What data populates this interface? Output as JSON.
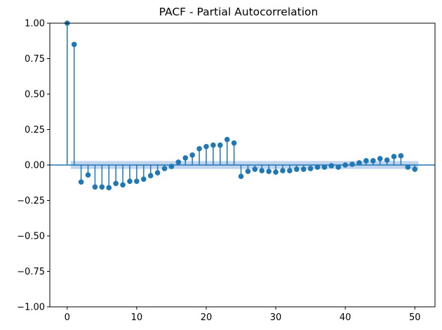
{
  "chart_data": {
    "type": "stem",
    "title": "PACF - Partial Autocorrelation",
    "xlabel": "",
    "ylabel": "",
    "xlim": [
      -2.5,
      52.9
    ],
    "ylim": [
      -1.0,
      1.0
    ],
    "xticks": [
      0,
      10,
      20,
      30,
      40,
      50
    ],
    "xtick_labels": [
      "0",
      "10",
      "20",
      "30",
      "40",
      "50"
    ],
    "yticks": [
      -1.0,
      -0.75,
      -0.5,
      -0.25,
      0.0,
      0.25,
      0.5,
      0.75,
      1.0
    ],
    "ytick_labels": [
      "−1.00",
      "−0.75",
      "−0.50",
      "−0.25",
      "0.00",
      "0.25",
      "0.50",
      "0.75",
      "1.00"
    ],
    "grid": false,
    "confidence_band": 0.028,
    "colors": {
      "stem": "#1f77b4",
      "band": "#aec7e8",
      "zero_line": "#1f77b4"
    },
    "lags": [
      0,
      1,
      2,
      3,
      4,
      5,
      6,
      7,
      8,
      9,
      10,
      11,
      12,
      13,
      14,
      15,
      16,
      17,
      18,
      19,
      20,
      21,
      22,
      23,
      24,
      25,
      26,
      27,
      28,
      29,
      30,
      31,
      32,
      33,
      34,
      35,
      36,
      37,
      38,
      39,
      40,
      41,
      42,
      43,
      44,
      45,
      46,
      47,
      48,
      49,
      50
    ],
    "values": [
      1.0,
      0.85,
      -0.12,
      -0.07,
      -0.155,
      -0.155,
      -0.16,
      -0.13,
      -0.14,
      -0.115,
      -0.115,
      -0.1,
      -0.075,
      -0.055,
      -0.025,
      -0.01,
      0.02,
      0.05,
      0.07,
      0.115,
      0.13,
      0.14,
      0.14,
      0.18,
      0.155,
      -0.08,
      -0.045,
      -0.03,
      -0.04,
      -0.045,
      -0.05,
      -0.04,
      -0.04,
      -0.03,
      -0.03,
      -0.025,
      -0.015,
      -0.015,
      -0.005,
      -0.015,
      0.0,
      0.005,
      0.015,
      0.03,
      0.03,
      0.045,
      0.035,
      0.06,
      0.065,
      -0.015,
      -0.03
    ]
  }
}
